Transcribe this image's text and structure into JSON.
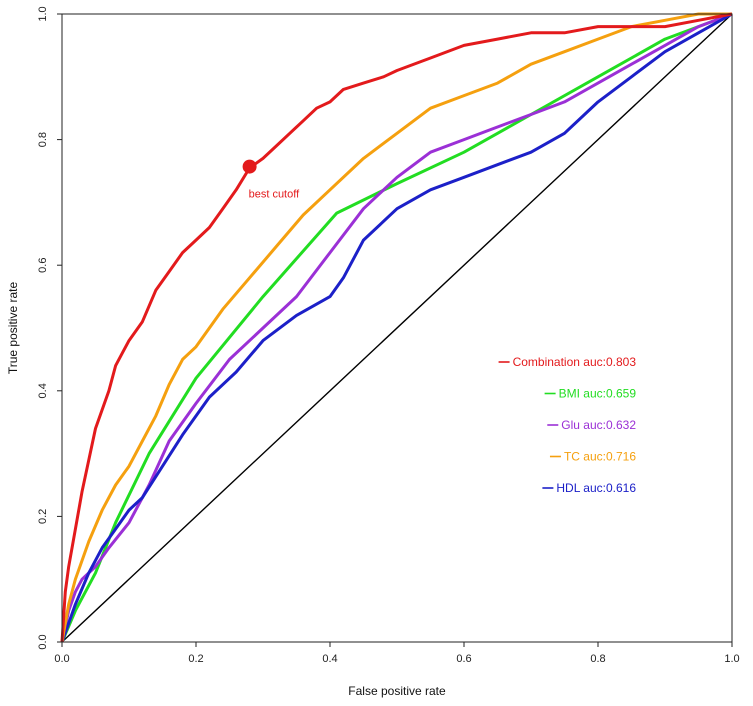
{
  "chart_data": {
    "type": "line",
    "title": "",
    "xlabel": "False positive rate",
    "ylabel": "True positive rate",
    "xlim": [
      0,
      1
    ],
    "ylim": [
      0,
      1
    ],
    "xticks": [
      "0.0",
      "0.2",
      "0.4",
      "0.6",
      "0.8",
      "1.0"
    ],
    "yticks": [
      "0.0",
      "0.2",
      "0.4",
      "0.6",
      "0.8",
      "1.0"
    ],
    "grid": false,
    "legend_position": "right-middle",
    "series": [
      {
        "name": "Combination",
        "label": "Combination auc:0.803",
        "color": "#e31a1c",
        "x": [
          0,
          0.005,
          0.01,
          0.02,
          0.03,
          0.04,
          0.05,
          0.06,
          0.07,
          0.08,
          0.09,
          0.1,
          0.12,
          0.14,
          0.16,
          0.18,
          0.2,
          0.22,
          0.24,
          0.26,
          0.28,
          0.3,
          0.32,
          0.34,
          0.36,
          0.38,
          0.4,
          0.42,
          0.45,
          0.48,
          0.5,
          0.55,
          0.6,
          0.65,
          0.7,
          0.75,
          0.8,
          0.9,
          0.95,
          1.0
        ],
        "y": [
          0,
          0.08,
          0.12,
          0.18,
          0.24,
          0.29,
          0.34,
          0.37,
          0.4,
          0.44,
          0.46,
          0.48,
          0.51,
          0.56,
          0.59,
          0.62,
          0.64,
          0.66,
          0.69,
          0.72,
          0.755,
          0.77,
          0.79,
          0.81,
          0.83,
          0.85,
          0.86,
          0.88,
          0.89,
          0.9,
          0.91,
          0.93,
          0.95,
          0.96,
          0.97,
          0.97,
          0.98,
          0.98,
          0.99,
          1.0
        ]
      },
      {
        "name": "BMI",
        "label": "BMI auc:0.659",
        "color": "#22dd22",
        "x": [
          0,
          0.02,
          0.05,
          0.08,
          0.13,
          0.2,
          0.3,
          0.41,
          0.5,
          0.6,
          0.7,
          0.8,
          0.9,
          0.95,
          1.0
        ],
        "y": [
          0,
          0.05,
          0.11,
          0.19,
          0.3,
          0.42,
          0.55,
          0.683,
          0.73,
          0.78,
          0.84,
          0.9,
          0.96,
          0.98,
          1.0
        ]
      },
      {
        "name": "Glu",
        "label": "Glu auc:0.632",
        "color": "#9b30d6",
        "x": [
          0,
          0.01,
          0.02,
          0.03,
          0.05,
          0.07,
          0.1,
          0.13,
          0.16,
          0.2,
          0.25,
          0.3,
          0.35,
          0.4,
          0.45,
          0.5,
          0.55,
          0.6,
          0.65,
          0.7,
          0.75,
          0.8,
          0.85,
          0.9,
          0.95,
          1.0
        ],
        "y": [
          0,
          0.05,
          0.08,
          0.1,
          0.12,
          0.15,
          0.19,
          0.25,
          0.32,
          0.38,
          0.45,
          0.5,
          0.55,
          0.62,
          0.69,
          0.74,
          0.78,
          0.8,
          0.82,
          0.84,
          0.86,
          0.89,
          0.92,
          0.95,
          0.98,
          1.0
        ]
      },
      {
        "name": "TC",
        "label": "TC auc:0.716",
        "color": "#f5a00f",
        "x": [
          0,
          0.01,
          0.02,
          0.04,
          0.06,
          0.08,
          0.1,
          0.12,
          0.14,
          0.16,
          0.18,
          0.2,
          0.24,
          0.28,
          0.32,
          0.36,
          0.4,
          0.45,
          0.5,
          0.55,
          0.6,
          0.65,
          0.7,
          0.75,
          0.8,
          0.85,
          0.9,
          0.95,
          1.0
        ],
        "y": [
          0,
          0.06,
          0.1,
          0.16,
          0.21,
          0.25,
          0.28,
          0.32,
          0.36,
          0.41,
          0.45,
          0.47,
          0.53,
          0.58,
          0.63,
          0.68,
          0.72,
          0.77,
          0.81,
          0.85,
          0.87,
          0.89,
          0.92,
          0.94,
          0.96,
          0.98,
          0.99,
          1.0,
          1.0
        ]
      },
      {
        "name": "HDL",
        "label": "HDL auc:0.616",
        "color": "#1c20c8",
        "x": [
          0,
          0.01,
          0.02,
          0.04,
          0.06,
          0.08,
          0.1,
          0.12,
          0.15,
          0.18,
          0.22,
          0.26,
          0.3,
          0.35,
          0.4,
          0.42,
          0.45,
          0.5,
          0.55,
          0.6,
          0.65,
          0.7,
          0.75,
          0.8,
          0.85,
          0.9,
          0.95,
          1.0
        ],
        "y": [
          0,
          0.03,
          0.06,
          0.11,
          0.15,
          0.18,
          0.21,
          0.23,
          0.28,
          0.33,
          0.39,
          0.43,
          0.48,
          0.52,
          0.55,
          0.58,
          0.64,
          0.69,
          0.72,
          0.74,
          0.76,
          0.78,
          0.81,
          0.86,
          0.9,
          0.94,
          0.97,
          1.0
        ]
      },
      {
        "name": "Reference",
        "label": "",
        "color": "#000000",
        "x": [
          0,
          1
        ],
        "y": [
          0,
          1
        ]
      }
    ],
    "best_cutoff": {
      "x": 0.28,
      "y": 0.757,
      "label": "best cutoff",
      "color": "#e31a1c"
    }
  }
}
